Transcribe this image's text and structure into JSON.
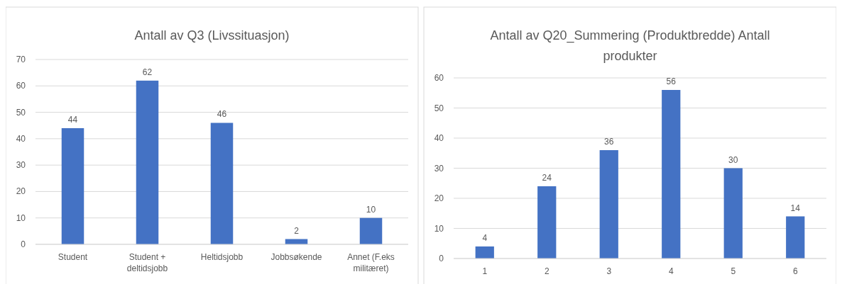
{
  "chart_data": [
    {
      "type": "bar",
      "title": "Antall av Q3 (Livssituasjon)",
      "categories": [
        "Student",
        "Student + deltidsjobb",
        "Heltidsjobb",
        "Jobbsøkende",
        "Annet (F.eks militæret)"
      ],
      "values": [
        44,
        62,
        46,
        2,
        10
      ],
      "color": "#4472c4",
      "ylim": [
        0,
        70
      ],
      "yticks": [
        0,
        10,
        20,
        30,
        40,
        50,
        60,
        70
      ],
      "grid": "y",
      "data_labels": true
    },
    {
      "type": "bar",
      "title": "Antall av Q20_Summering (Produktbredde) Antall produkter",
      "categories": [
        "1",
        "2",
        "3",
        "4",
        "5",
        "6"
      ],
      "values": [
        4,
        24,
        36,
        56,
        30,
        14
      ],
      "color": "#4472c4",
      "ylim": [
        0,
        60
      ],
      "yticks": [
        0,
        10,
        20,
        30,
        40,
        50,
        60
      ],
      "grid": "y",
      "data_labels": true
    }
  ]
}
